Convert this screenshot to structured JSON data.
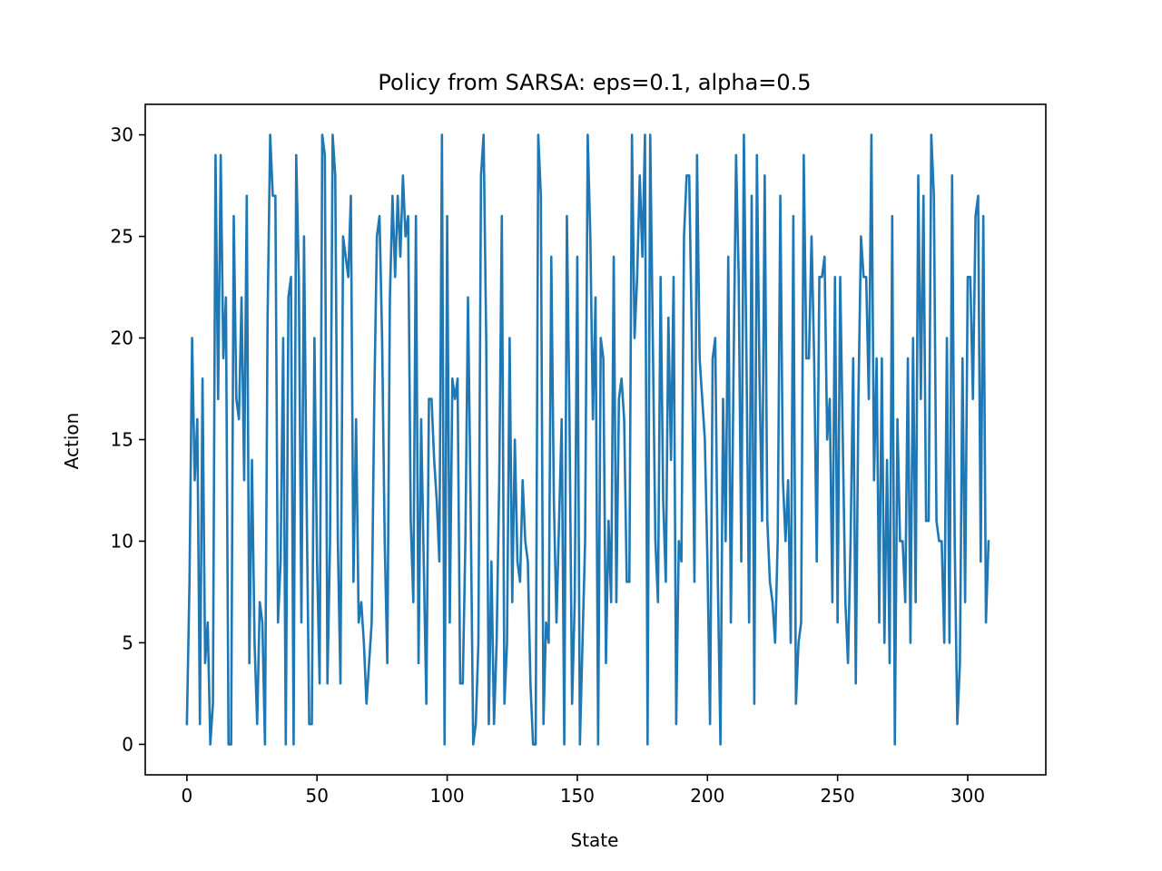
{
  "chart_data": {
    "type": "line",
    "title": "Policy from SARSA: eps=0.1, alpha=0.5",
    "xlabel": "State",
    "ylabel": "Action",
    "xlim": [
      -16,
      330
    ],
    "ylim": [
      -1.5,
      31.5
    ],
    "xticks": [
      0,
      50,
      100,
      150,
      200,
      250,
      300
    ],
    "yticks": [
      0,
      5,
      10,
      15,
      20,
      25,
      30
    ],
    "grid": false,
    "series": [
      {
        "color": "#1f77b4",
        "x_start": 0,
        "x_step": 1,
        "values": [
          1,
          8,
          20,
          13,
          16,
          1,
          18,
          4,
          6,
          0,
          2,
          29,
          17,
          29,
          19,
          22,
          0,
          0,
          26,
          17,
          16,
          22,
          13,
          27,
          4,
          14,
          5,
          1,
          7,
          6,
          0,
          21,
          30,
          27,
          27,
          6,
          9,
          20,
          0,
          22,
          23,
          0,
          29,
          23,
          6,
          25,
          12,
          1,
          1,
          20,
          9,
          3,
          30,
          29,
          3,
          10,
          30,
          28,
          10,
          3,
          25,
          24,
          23,
          27,
          8,
          16,
          6,
          7,
          5,
          2,
          4,
          6,
          17,
          25,
          26,
          20,
          10,
          4,
          22,
          27,
          23,
          27,
          24,
          28,
          25,
          26,
          11,
          7,
          26,
          4,
          16,
          9,
          2,
          17,
          17,
          14,
          12,
          9,
          30,
          0,
          26,
          6,
          18,
          17,
          18,
          3,
          3,
          10,
          22,
          12,
          0,
          1,
          5,
          28,
          30,
          20,
          1,
          9,
          1,
          5,
          13,
          26,
          2,
          5,
          20,
          7,
          15,
          9,
          8,
          13,
          10,
          9,
          3,
          0,
          0,
          30,
          27,
          1,
          6,
          5,
          24,
          12,
          6,
          11,
          16,
          0,
          26,
          16,
          2,
          7,
          24,
          0,
          5,
          10,
          30,
          25,
          16,
          22,
          0,
          20,
          19,
          4,
          11,
          7,
          24,
          7,
          17,
          18,
          16,
          8,
          8,
          30,
          20,
          23,
          28,
          24,
          30,
          0,
          30,
          20,
          10,
          7,
          23,
          12,
          8,
          21,
          14,
          23,
          1,
          10,
          9,
          25,
          28,
          28,
          20,
          8,
          29,
          19,
          17,
          15,
          9,
          1,
          19,
          20,
          8,
          0,
          17,
          10,
          24,
          6,
          18,
          29,
          23,
          9,
          30,
          19,
          6,
          27,
          2,
          29,
          18,
          11,
          28,
          11,
          8,
          7,
          5,
          10,
          27,
          13,
          10,
          13,
          5,
          26,
          2,
          5,
          6,
          29,
          19,
          19,
          25,
          19,
          9,
          23,
          23,
          24,
          15,
          17,
          7,
          23,
          6,
          23,
          15,
          7,
          4,
          10,
          19,
          3,
          17,
          25,
          23,
          23,
          17,
          30,
          13,
          19,
          6,
          19,
          5,
          14,
          4,
          26,
          0,
          16,
          10,
          10,
          7,
          19,
          5,
          20,
          7,
          28,
          17,
          27,
          11,
          11,
          30,
          27,
          11,
          10,
          10,
          5,
          20,
          5,
          28,
          10,
          1,
          4,
          19,
          7,
          23,
          23,
          17,
          26,
          27,
          9,
          26,
          6,
          10
        ]
      }
    ]
  }
}
